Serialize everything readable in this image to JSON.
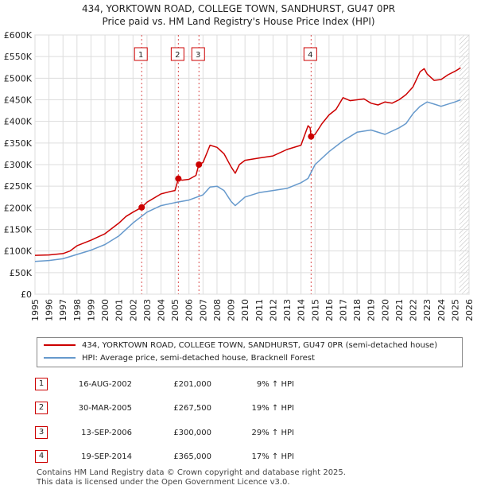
{
  "title": "434, YORKTOWN ROAD, COLLEGE TOWN, SANDHURST, GU47 0PR",
  "subtitle": "Price paid vs. HM Land Registry's House Price Index (HPI)",
  "colors": {
    "property": "#cc0000",
    "hpi": "#6699cc",
    "grid": "#dddddd",
    "future_hatch": "#bbbbbb"
  },
  "chart_data": {
    "type": "line",
    "title": "434, YORKTOWN ROAD, COLLEGE TOWN, SANDHURST, GU47 0PR",
    "subtitle": "Price paid vs. HM Land Registry's House Price Index (HPI)",
    "xlabel": "",
    "ylabel": "",
    "xlim": [
      1995,
      2026
    ],
    "ylim": [
      0,
      600000
    ],
    "grid": true,
    "x_ticks": [
      1995,
      1996,
      1997,
      1998,
      1999,
      2000,
      2001,
      2002,
      2003,
      2004,
      2005,
      2006,
      2007,
      2008,
      2009,
      2010,
      2011,
      2012,
      2013,
      2014,
      2015,
      2016,
      2017,
      2018,
      2019,
      2020,
      2021,
      2022,
      2023,
      2024,
      2025,
      2026
    ],
    "y_ticks": [
      0,
      50000,
      100000,
      150000,
      200000,
      250000,
      300000,
      350000,
      400000,
      450000,
      500000,
      550000,
      600000
    ],
    "y_tick_labels": [
      "£0",
      "£50K",
      "£100K",
      "£150K",
      "£200K",
      "£250K",
      "£300K",
      "£350K",
      "£400K",
      "£450K",
      "£500K",
      "£550K",
      "£600K"
    ],
    "hatch_from": 2025.3,
    "series": [
      {
        "name": "434, YORKTOWN ROAD, COLLEGE TOWN, SANDHURST, GU47 0PR (semi-detached house)",
        "color": "#cc0000",
        "x": [
          1995.0,
          1996.0,
          1997.0,
          1997.5,
          1998.0,
          1999.0,
          2000.0,
          2001.0,
          2001.5,
          2002.0,
          2002.62,
          2003.0,
          2004.0,
          2004.7,
          2005.0,
          2005.24,
          2005.5,
          2006.0,
          2006.5,
          2006.7,
          2007.0,
          2007.5,
          2008.0,
          2008.5,
          2009.0,
          2009.3,
          2009.6,
          2010.0,
          2011.0,
          2012.0,
          2013.0,
          2014.0,
          2014.5,
          2014.65,
          2014.72,
          2015.0,
          2015.5,
          2016.0,
          2016.5,
          2017.0,
          2017.5,
          2018.0,
          2018.5,
          2019.0,
          2019.5,
          2020.0,
          2020.5,
          2021.0,
          2021.5,
          2022.0,
          2022.5,
          2022.8,
          2023.0,
          2023.5,
          2024.0,
          2024.5,
          2025.0,
          2025.4
        ],
        "y": [
          90000,
          91000,
          94000,
          100000,
          112000,
          125000,
          140000,
          165000,
          180000,
          190000,
          201000,
          213000,
          232000,
          238000,
          240000,
          267500,
          264000,
          266000,
          275000,
          300000,
          305000,
          345000,
          340000,
          325000,
          295000,
          280000,
          300000,
          310000,
          315000,
          320000,
          335000,
          345000,
          390000,
          385000,
          365000,
          370000,
          395000,
          415000,
          428000,
          455000,
          448000,
          450000,
          452000,
          442000,
          438000,
          445000,
          442000,
          450000,
          462000,
          480000,
          515000,
          522000,
          510000,
          495000,
          497000,
          508000,
          516000,
          524000
        ]
      },
      {
        "name": "HPI: Average price, semi-detached house, Bracknell Forest",
        "color": "#6699cc",
        "x": [
          1995.0,
          1996.0,
          1997.0,
          1998.0,
          1999.0,
          2000.0,
          2001.0,
          2002.0,
          2003.0,
          2004.0,
          2005.0,
          2006.0,
          2007.0,
          2007.5,
          2008.0,
          2008.5,
          2009.0,
          2009.3,
          2010.0,
          2011.0,
          2012.0,
          2013.0,
          2014.0,
          2014.5,
          2015.0,
          2016.0,
          2017.0,
          2018.0,
          2019.0,
          2020.0,
          2021.0,
          2021.5,
          2022.0,
          2022.5,
          2023.0,
          2023.5,
          2024.0,
          2025.0,
          2025.4
        ],
        "y": [
          76000,
          78000,
          82000,
          92000,
          102000,
          115000,
          135000,
          165000,
          190000,
          205000,
          212000,
          218000,
          230000,
          248000,
          250000,
          240000,
          215000,
          205000,
          225000,
          235000,
          240000,
          245000,
          258000,
          268000,
          300000,
          330000,
          355000,
          375000,
          380000,
          370000,
          385000,
          395000,
          418000,
          435000,
          445000,
          440000,
          435000,
          445000,
          450000
        ]
      }
    ],
    "transactions": [
      {
        "n": "1",
        "x": 2002.62,
        "price": 201000
      },
      {
        "n": "2",
        "x": 2005.24,
        "price": 267500
      },
      {
        "n": "3",
        "x": 2006.71,
        "price": 300000
      },
      {
        "n": "4",
        "x": 2014.72,
        "price": 365000
      }
    ]
  },
  "legend": {
    "property_label": "434, YORKTOWN ROAD, COLLEGE TOWN, SANDHURST, GU47 0PR (semi-detached house)",
    "hpi_label": "HPI: Average price, semi-detached house, Bracknell Forest"
  },
  "table": {
    "rows": [
      {
        "n": "1",
        "date": "16-AUG-2002",
        "price": "£201,000",
        "hpi": "9% ↑ HPI"
      },
      {
        "n": "2",
        "date": "30-MAR-2005",
        "price": "£267,500",
        "hpi": "19% ↑ HPI"
      },
      {
        "n": "3",
        "date": "13-SEP-2006",
        "price": "£300,000",
        "hpi": "29% ↑ HPI"
      },
      {
        "n": "4",
        "date": "19-SEP-2014",
        "price": "£365,000",
        "hpi": "17% ↑ HPI"
      }
    ]
  },
  "footer": {
    "line1": "Contains HM Land Registry data © Crown copyright and database right 2025.",
    "line2": "This data is licensed under the Open Government Licence v3.0."
  }
}
